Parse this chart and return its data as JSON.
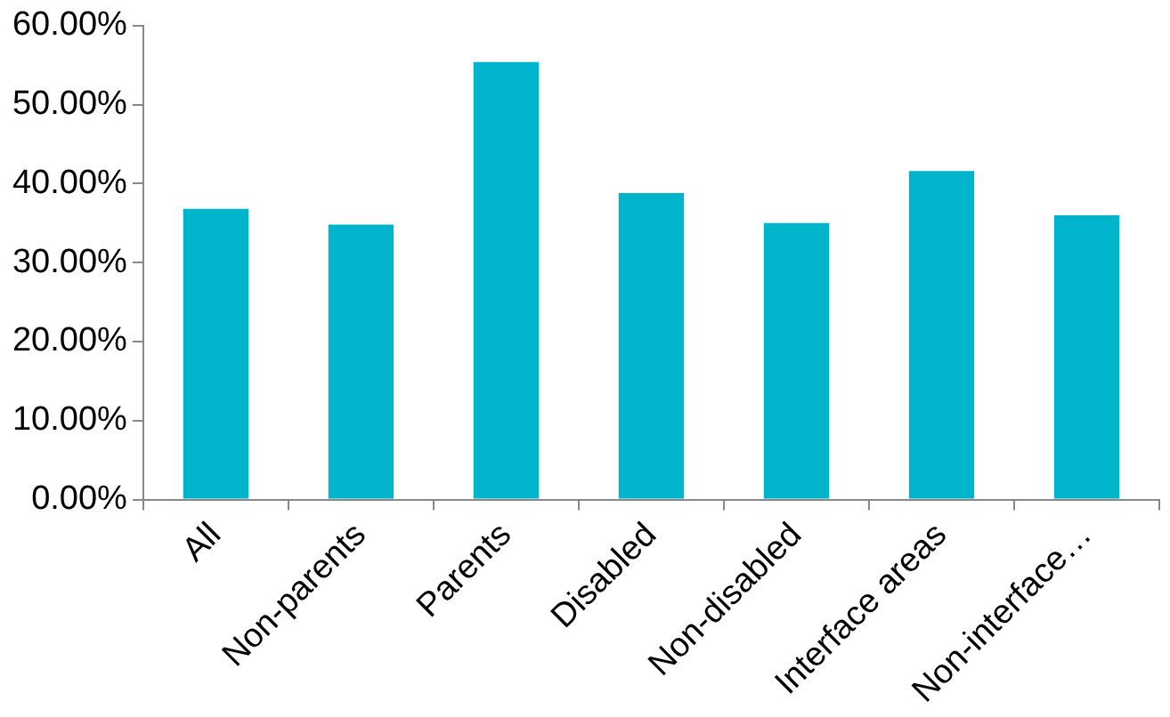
{
  "chart_data": {
    "type": "bar",
    "categories": [
      "All",
      "Non-parents",
      "Parents",
      "Disabled",
      "Non-disabled",
      "Interface areas",
      "Non-interface…"
    ],
    "values": [
      36.8,
      34.8,
      55.4,
      38.8,
      35.0,
      41.6,
      36.0
    ],
    "color": "#00b4cc",
    "ylim": [
      0,
      60
    ],
    "yticks": [
      {
        "value": 0,
        "label": "0.00%"
      },
      {
        "value": 10,
        "label": "10.00%"
      },
      {
        "value": 20,
        "label": "20.00%"
      },
      {
        "value": 30,
        "label": "30.00%"
      },
      {
        "value": 40,
        "label": "40.00%"
      },
      {
        "value": 50,
        "label": "50.00%"
      },
      {
        "value": 60,
        "label": "60.00%"
      }
    ],
    "grid": false,
    "legend": false
  }
}
